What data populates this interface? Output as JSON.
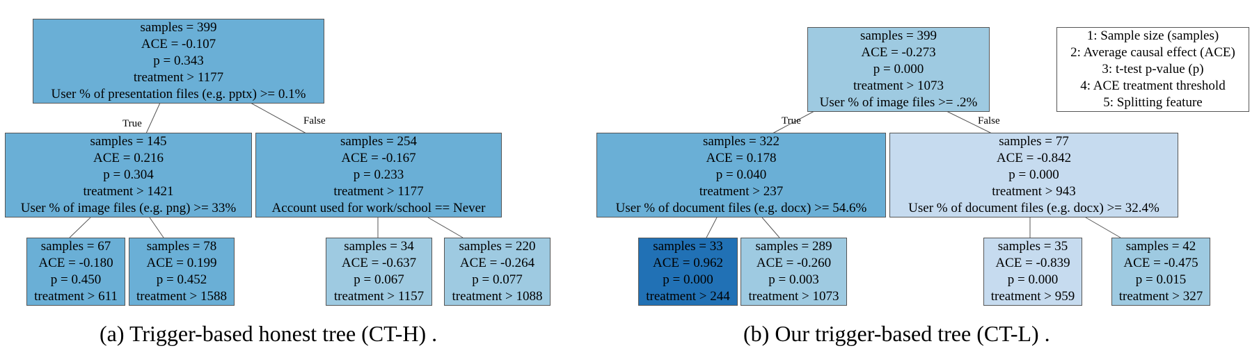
{
  "tree_a": {
    "root": {
      "samples": "samples = 399",
      "ace": "ACE = -0.107",
      "p": "p = 0.343",
      "treatment": "treatment > 1177",
      "split": "User % of presentation files (e.g. pptx) >= 0.1%",
      "color": "#6aafd6"
    },
    "left": {
      "samples": "samples = 145",
      "ace": "ACE = 0.216",
      "p": "p = 0.304",
      "treatment": "treatment > 1421",
      "split": "User % of image files (e.g. png) >= 33%",
      "color": "#6aafd6"
    },
    "right": {
      "samples": "samples = 254",
      "ace": "ACE = -0.167",
      "p": "p = 0.233",
      "treatment": "treatment > 1177",
      "split": "Account used for work/school == Never",
      "color": "#6aafd6"
    },
    "ll": {
      "samples": "samples = 67",
      "ace": "ACE = -0.180",
      "p": "p = 0.450",
      "treatment": "treatment > 611",
      "color": "#6aafd6"
    },
    "lr": {
      "samples": "samples = 78",
      "ace": "ACE = 0.199",
      "p": "p = 0.452",
      "treatment": "treatment > 1588",
      "color": "#6aafd6"
    },
    "rl": {
      "samples": "samples = 34",
      "ace": "ACE = -0.637",
      "p": "p = 0.067",
      "treatment": "treatment > 1157",
      "color": "#9ecae1"
    },
    "rr": {
      "samples": "samples = 220",
      "ace": "ACE = -0.264",
      "p": "p = 0.077",
      "treatment": "treatment > 1088",
      "color": "#9ecae1"
    },
    "true_label": "True",
    "false_label": "False",
    "caption": "(a) Trigger-based honest tree (CT-H) ."
  },
  "tree_b": {
    "root": {
      "samples": "samples = 399",
      "ace": "ACE = -0.273",
      "p": "p = 0.000",
      "treatment": "treatment > 1073",
      "split": "User % of image files >= .2%",
      "color": "#9ecae1"
    },
    "left": {
      "samples": "samples = 322",
      "ace": "ACE = 0.178",
      "p": "p = 0.040",
      "treatment": "treatment > 237",
      "split": "User % of document files (e.g. docx) >= 54.6%",
      "color": "#6aafd6"
    },
    "right": {
      "samples": "samples = 77",
      "ace": "ACE = -0.842",
      "p": "p = 0.000",
      "treatment": "treatment > 943",
      "split": "User % of document files (e.g. docx) >= 32.4%",
      "color": "#c6dbef"
    },
    "ll": {
      "samples": "samples = 33",
      "ace": "ACE = 0.962",
      "p": "p = 0.000",
      "treatment": "treatment > 244",
      "color": "#2171b5"
    },
    "lr": {
      "samples": "samples = 289",
      "ace": "ACE = -0.260",
      "p": "p = 0.003",
      "treatment": "treatment > 1073",
      "color": "#9ecae1"
    },
    "rl": {
      "samples": "samples = 35",
      "ace": "ACE = -0.839",
      "p": "p = 0.000",
      "treatment": "treatment > 959",
      "color": "#c6dbef"
    },
    "rr": {
      "samples": "samples = 42",
      "ace": "ACE = -0.475",
      "p": "p = 0.015",
      "treatment": "treatment > 327",
      "color": "#9ecae1"
    },
    "true_label": "True",
    "false_label": "False",
    "caption": "(b) Our trigger-based tree (CT-L) ."
  },
  "legend": [
    "1: Sample size (samples)",
    "2: Average causal effect (ACE)",
    "3: t-test p-value (p)",
    "4: ACE treatment threshold",
    "5: Splitting feature"
  ]
}
